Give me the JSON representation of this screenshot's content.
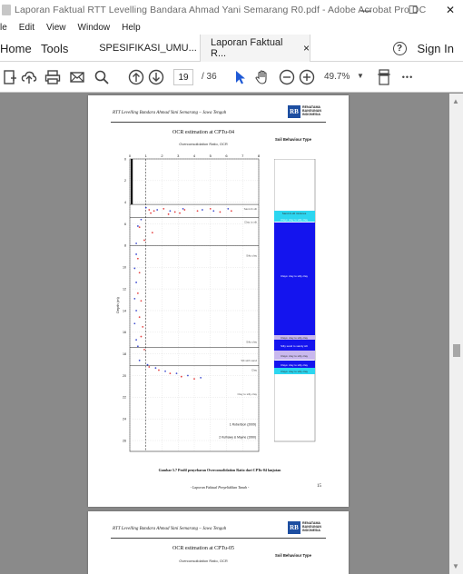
{
  "window": {
    "title": "Laporan Faktual RTT Levelling Bandara Ahmad Yani Semarang R0.pdf - Adobe Acrobat Pro DC",
    "minimize": "—",
    "maximize": "☐",
    "close": "✕"
  },
  "menu": [
    "le",
    "Edit",
    "View",
    "Window",
    "Help"
  ],
  "tabs": {
    "home": "Home",
    "tools": "Tools",
    "doc1": "SPESIFIKASI_UMU...",
    "doc2": "Laporan Faktual  R...",
    "doc2_close": "×",
    "help": "?",
    "signin": "Sign In"
  },
  "toolbar": {
    "page_current": "19",
    "page_total": "/ 36",
    "zoom": "49.7%",
    "zoom_dropdown": "▼",
    "more": "•••"
  },
  "colors": {
    "accent_cursor": "#1f5ad6",
    "sbt_blue": "#1414ee",
    "sbt_cyan": "#2cd6f0",
    "sbt_lavender": "#c9b8ee",
    "logo_blue": "#1d4ea1",
    "data_red": "#e02020",
    "data_blue": "#2030c8"
  },
  "page1": {
    "header": "RTT Levelling Bandara Ahmad Yani Semarang – Jawa Tengah",
    "logo_letters": "RB",
    "logo_lines": [
      "RENATAMA",
      "BANGUNAN",
      "INDONESIA"
    ],
    "chart_title": "OCR estimation at CPTu-04",
    "chart_subtitle": "Overconsolidation Ratio, OCR",
    "sbt_title": "Soil Behaviour Type",
    "y_label": "Depth (m)",
    "layer_labels": [
      "Sand & silt",
      "Clay to silt",
      "Silty clay",
      "Silty clay",
      "Silt with sand",
      "Clay",
      "Clay to silty clay"
    ],
    "legend": [
      "1 Robertson (2009)",
      "2 Kulhawy & Mayne (1990)"
    ],
    "sbt_layers": [
      "Sand & silt mixtures",
      "Clays: clay to silty clay",
      "Clays: clay to silty clay",
      "Clays: clay to silty clay",
      "Silty sand to sandy silt",
      "Clays: clay to silty clay",
      "Clays: clay to silty clay",
      "Clays: clay to silty clay"
    ],
    "caption": "Gambar 5.7 Profil penyebaran Overconsolidation Ratio dari CPTu-04 lanjutan",
    "footer": "- Laporan Faktual Penyelidikan Tanah -",
    "page_number": "15"
  },
  "page2": {
    "header": "RTT Levelling Bandara Ahmad Yani Semarang – Jawa Tengah",
    "logo_letters": "RB",
    "logo_lines": [
      "RENATAMA",
      "BANGUNAN",
      "INDONESIA"
    ],
    "chart_title": "OCR estimation at CPTu-05",
    "chart_subtitle": "Overconsolidation Ratio, OCR",
    "sbt_title": "Soil Behaviour Type"
  },
  "chart_data": {
    "type": "scatter",
    "title": "OCR estimation at CPTu-04",
    "xlabel": "Overconsolidation Ratio, OCR",
    "ylabel": "Depth (m)",
    "xlim": [
      0,
      8
    ],
    "ylim": [
      0,
      27
    ],
    "x_ticks": [
      "0",
      "1",
      "2",
      "3",
      "4",
      "5",
      "6",
      "7",
      "8"
    ],
    "y_ticks": [
      "0",
      "2",
      "4",
      "6",
      "8",
      "10",
      "12",
      "14",
      "16",
      "18",
      "20",
      "22",
      "24",
      "26"
    ],
    "layer_boundaries_depth": [
      4.2,
      5.4,
      8.0,
      17.4,
      19.1
    ],
    "series": [
      {
        "name": "Robertson (2009)",
        "color": "#e02020",
        "points": [
          [
            1.2,
            4.7
          ],
          [
            1.5,
            4.8
          ],
          [
            2.1,
            4.6
          ],
          [
            2.8,
            4.9
          ],
          [
            3.4,
            4.7
          ],
          [
            4.2,
            4.8
          ],
          [
            5.0,
            4.6
          ],
          [
            5.6,
            4.9
          ],
          [
            6.3,
            4.8
          ],
          [
            1.3,
            5.0
          ],
          [
            2.4,
            5.1
          ],
          [
            3.1,
            5.0
          ],
          [
            0.6,
            6.3
          ],
          [
            0.9,
            7.5
          ],
          [
            1.4,
            6.8
          ],
          [
            0.5,
            9.2
          ],
          [
            0.6,
            10.5
          ],
          [
            0.5,
            12.4
          ],
          [
            0.7,
            13.1
          ],
          [
            0.6,
            14.6
          ],
          [
            0.8,
            15.5
          ],
          [
            0.7,
            16.4
          ],
          [
            0.9,
            17.6
          ],
          [
            1.2,
            19.2
          ],
          [
            1.8,
            19.5
          ],
          [
            2.5,
            19.8
          ],
          [
            3.2,
            20.1
          ],
          [
            4.0,
            20.3
          ]
        ]
      },
      {
        "name": "Kulhawy & Mayne (1990)",
        "color": "#2030c8",
        "points": [
          [
            1.0,
            4.5
          ],
          [
            1.7,
            4.7
          ],
          [
            2.5,
            4.8
          ],
          [
            3.3,
            4.6
          ],
          [
            4.5,
            4.7
          ],
          [
            5.2,
            4.8
          ],
          [
            6.1,
            4.6
          ],
          [
            0.7,
            5.6
          ],
          [
            0.5,
            6.2
          ],
          [
            0.4,
            7.8
          ],
          [
            0.4,
            8.8
          ],
          [
            0.3,
            10.1
          ],
          [
            0.4,
            11.4
          ],
          [
            0.3,
            12.9
          ],
          [
            0.4,
            14.0
          ],
          [
            0.3,
            15.2
          ],
          [
            0.4,
            16.7
          ],
          [
            0.5,
            17.3
          ],
          [
            0.6,
            18.6
          ],
          [
            1.1,
            19.0
          ],
          [
            1.6,
            19.3
          ],
          [
            2.2,
            19.6
          ],
          [
            2.9,
            19.8
          ],
          [
            3.6,
            20.0
          ],
          [
            4.4,
            20.2
          ]
        ]
      }
    ]
  }
}
